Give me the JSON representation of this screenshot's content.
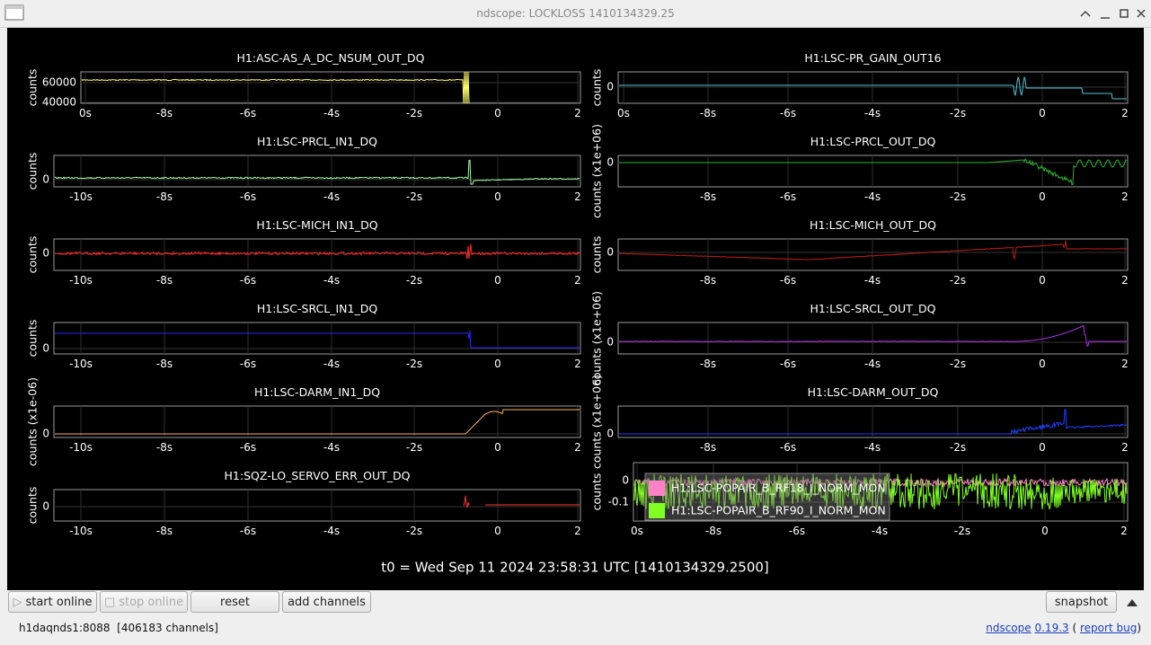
{
  "window": {
    "title": "ndscope: LOCKLOSS 1410134329.25"
  },
  "plots": [
    {
      "title": "H1:ASC-AS_A_DC_NSUM_OUT_DQ",
      "ylabel": "counts",
      "yticks": [
        60000,
        40000
      ],
      "xticks": [
        "0s",
        "-8s",
        "-6s",
        "-4s",
        "-2s",
        "0",
        "2"
      ],
      "color": "#ffff66"
    },
    {
      "title": "H1:LSC-PR_GAIN_OUT16",
      "ylabel": "counts",
      "yticks": [
        0
      ],
      "xticks": [
        "0s",
        "-8s",
        "-6s",
        "-4s",
        "-2s",
        "0",
        "2"
      ],
      "color": "#4fc8d8"
    },
    {
      "title": "H1:LSC-PRCL_IN1_DQ",
      "ylabel": "counts",
      "yticks": [
        0
      ],
      "xticks": [
        "-10s",
        "-8s",
        "-6s",
        "-4s",
        "-2s",
        "0",
        "2"
      ],
      "color": "#a8ffa8"
    },
    {
      "title": "H1:LSC-PRCL_OUT_DQ",
      "ylabel": "counts (x1e+06)",
      "yticks": [
        0
      ],
      "xticks": [
        "-8s",
        "-6s",
        "-4s",
        "-2s",
        "0",
        "2"
      ],
      "color": "#30b030"
    },
    {
      "title": "H1:LSC-MICH_IN1_DQ",
      "ylabel": "counts",
      "yticks": [
        0
      ],
      "xticks": [
        "-10s",
        "-8s",
        "-6s",
        "-4s",
        "-2s",
        "0",
        "2"
      ],
      "color": "#ff2a2a"
    },
    {
      "title": "H1:LSC-MICH_OUT_DQ",
      "ylabel": "counts",
      "yticks": [
        0
      ],
      "xticks": [
        "-8s",
        "-6s",
        "-4s",
        "-2s",
        "0",
        "2"
      ],
      "color": "#c01c1c"
    },
    {
      "title": "H1:LSC-SRCL_IN1_DQ",
      "ylabel": "counts",
      "yticks": [
        0
      ],
      "xticks": [
        "-10s",
        "-8s",
        "-6s",
        "-4s",
        "-2s",
        "0",
        "2"
      ],
      "color": "#2626ff"
    },
    {
      "title": "H1:LSC-SRCL_OUT_DQ",
      "ylabel": "counts (x1e+06)",
      "yticks": [
        0
      ],
      "xticks": [
        "-8s",
        "-6s",
        "-4s",
        "-2s",
        "0",
        "2"
      ],
      "color": "#b030e0"
    },
    {
      "title": "H1:LSC-DARM_IN1_DQ",
      "ylabel": "counts (x1e-06)",
      "yticks": [
        0
      ],
      "xticks": [
        "-10s",
        "-8s",
        "-6s",
        "-4s",
        "-2s",
        "0",
        "2"
      ],
      "color": "#ffb060"
    },
    {
      "title": "H1:LSC-DARM_OUT_DQ",
      "ylabel": "counts (x1e+06)",
      "yticks": [
        0
      ],
      "xticks": [
        "-8s",
        "-6s",
        "-4s",
        "-2s",
        "0",
        "2"
      ],
      "color": "#2040ff"
    },
    {
      "title": "H1:SQZ-LO_SERVO_ERR_OUT_DQ",
      "ylabel": "counts",
      "yticks": [
        0
      ],
      "xticks": [
        "-10s",
        "-8s",
        "-6s",
        "-4s",
        "-2s",
        "0",
        "2"
      ],
      "color": "#ff3030"
    },
    {
      "ylabel": "counts",
      "yticks": [
        0,
        -0.1
      ],
      "xticks": [
        "0s",
        "-8s",
        "-6s",
        "-4s",
        "-2s",
        "0",
        "2"
      ],
      "series": [
        {
          "name": "H1:LSC-POPAIR_B_RF18_I_NORM_MON",
          "color": "#ff80c8"
        },
        {
          "name": "H1:LSC-POPAIR_B_RF90_I_NORM_MON",
          "color": "#80ff20"
        }
      ]
    }
  ],
  "t0": "t0 = Wed Sep 11 2024 23:58:31 UTC [1410134329.2500]",
  "buttons": {
    "start": "start online",
    "stop": "stop online",
    "reset": "reset",
    "add": "add channels",
    "snapshot": "snapshot"
  },
  "status": {
    "server": "h1daqnds1:8088",
    "channels": "[406183 channels]",
    "about": [
      {
        "text": "ndscope",
        "link": true
      },
      {
        "text": "0.19.3",
        "link": true
      },
      {
        "text": "(",
        "link": false
      },
      {
        "text": "report bug",
        "link": true
      },
      {
        "text": ")",
        "link": false
      }
    ]
  }
}
